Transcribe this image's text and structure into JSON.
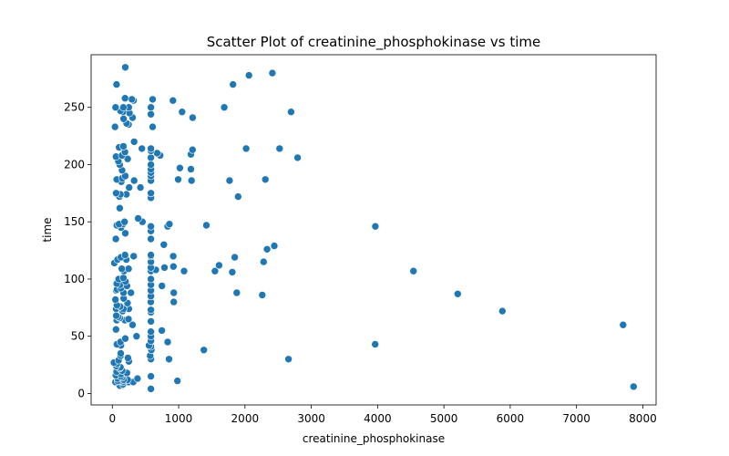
{
  "chart_data": {
    "type": "scatter",
    "title": "Scatter Plot of creatinine_phosphokinase vs time",
    "xlabel": "creatinine_phosphokinase",
    "ylabel": "time",
    "xlim": [
      -320,
      8200
    ],
    "ylim": [
      -10,
      296
    ],
    "xticks": [
      0,
      1000,
      2000,
      3000,
      4000,
      5000,
      6000,
      7000,
      8000
    ],
    "yticks": [
      0,
      50,
      100,
      150,
      200,
      250
    ],
    "grid": false,
    "legend": "none",
    "color": "#1f77b4",
    "points": [
      [
        582,
        4
      ],
      [
        7861,
        6
      ],
      [
        146,
        7
      ],
      [
        111,
        7
      ],
      [
        160,
        8
      ],
      [
        47,
        10
      ],
      [
        246,
        10
      ],
      [
        315,
        10
      ],
      [
        157,
        10
      ],
      [
        123,
        11
      ],
      [
        81,
        11
      ],
      [
        231,
        12
      ],
      [
        981,
        11
      ],
      [
        168,
        12
      ],
      [
        80,
        13
      ],
      [
        379,
        13
      ],
      [
        149,
        14
      ],
      [
        582,
        15
      ],
      [
        125,
        15
      ],
      [
        52,
        16
      ],
      [
        128,
        17
      ],
      [
        220,
        18
      ],
      [
        63,
        19
      ],
      [
        148,
        20
      ],
      [
        112,
        22
      ],
      [
        122,
        23
      ],
      [
        60,
        24
      ],
      [
        70,
        26
      ],
      [
        23,
        27
      ],
      [
        249,
        28
      ],
      [
        94,
        29
      ],
      [
        582,
        30
      ],
      [
        855,
        30
      ],
      [
        2656,
        30
      ],
      [
        235,
        31
      ],
      [
        124,
        33
      ],
      [
        571,
        33
      ],
      [
        127,
        35
      ],
      [
        588,
        38
      ],
      [
        1380,
        38
      ],
      [
        582,
        41
      ],
      [
        553,
        42
      ],
      [
        129,
        42
      ],
      [
        3964,
        43
      ],
      [
        69,
        43
      ],
      [
        122,
        45
      ],
      [
        835,
        45
      ],
      [
        582,
        46
      ],
      [
        196,
        48
      ],
      [
        582,
        50
      ],
      [
        364,
        50
      ],
      [
        582,
        54
      ],
      [
        747,
        55
      ],
      [
        55,
        56
      ],
      [
        305,
        60
      ],
      [
        7702,
        60
      ],
      [
        582,
        63
      ],
      [
        66,
        64
      ],
      [
        190,
        64
      ],
      [
        244,
        65
      ],
      [
        112,
        66
      ],
      [
        88,
        67
      ],
      [
        59,
        68
      ],
      [
        582,
        71
      ],
      [
        5882,
        72
      ],
      [
        156,
        72
      ],
      [
        582,
        73
      ],
      [
        249,
        74
      ],
      [
        166,
        74
      ],
      [
        56,
        74
      ],
      [
        118,
        76
      ],
      [
        69,
        77
      ],
      [
        228,
        79
      ],
      [
        580,
        80
      ],
      [
        926,
        80
      ],
      [
        47,
        82
      ],
      [
        171,
        83
      ],
      [
        582,
        85
      ],
      [
        2261,
        86
      ],
      [
        5209,
        87
      ],
      [
        1876,
        88
      ],
      [
        280,
        88
      ],
      [
        168,
        88
      ],
      [
        926,
        88
      ],
      [
        582,
        90
      ],
      [
        59,
        90
      ],
      [
        72,
        91
      ],
      [
        130,
        92
      ],
      [
        220,
        94
      ],
      [
        748,
        94
      ],
      [
        582,
        95
      ],
      [
        115,
        95
      ],
      [
        66,
        96
      ],
      [
        198,
        98
      ],
      [
        582,
        100
      ],
      [
        95,
        100
      ],
      [
        167,
        101
      ],
      [
        1808,
        106
      ],
      [
        4540,
        107
      ],
      [
        1548,
        107
      ],
      [
        582,
        107
      ],
      [
        176,
        107
      ],
      [
        1081,
        107
      ],
      [
        655,
        108
      ],
      [
        245,
        109
      ],
      [
        143,
        109
      ],
      [
        786,
        110
      ],
      [
        582,
        110
      ],
      [
        921,
        111
      ],
      [
        1610,
        112
      ],
      [
        30,
        114
      ],
      [
        582,
        115
      ],
      [
        2281,
        115
      ],
      [
        78,
        117
      ],
      [
        210,
        117
      ],
      [
        129,
        119
      ],
      [
        1846,
        119
      ],
      [
        582,
        120
      ],
      [
        918,
        120
      ],
      [
        322,
        120
      ],
      [
        191,
        121
      ],
      [
        582,
        121
      ],
      [
        2334,
        126
      ],
      [
        2442,
        129
      ],
      [
        776,
        130
      ],
      [
        582,
        135
      ],
      [
        52,
        135
      ],
      [
        196,
        140
      ],
      [
        582,
        142
      ],
      [
        131,
        145
      ],
      [
        3966,
        146
      ],
      [
        582,
        146
      ],
      [
        835,
        146
      ],
      [
        67,
        147
      ],
      [
        1419,
        147
      ],
      [
        160,
        148
      ],
      [
        860,
        148
      ],
      [
        101,
        148
      ],
      [
        184,
        150
      ],
      [
        454,
        150
      ],
      [
        389,
        153
      ],
      [
        112,
        162
      ],
      [
        582,
        171
      ],
      [
        1896,
        172
      ],
      [
        107,
        172
      ],
      [
        212,
        174
      ],
      [
        123,
        174
      ],
      [
        582,
        175
      ],
      [
        57,
        175
      ],
      [
        253,
        180
      ],
      [
        424,
        180
      ],
      [
        135,
        185
      ],
      [
        582,
        186
      ],
      [
        1195,
        186
      ],
      [
        1767,
        186
      ],
      [
        2307,
        187
      ],
      [
        328,
        186
      ],
      [
        993,
        187
      ],
      [
        66,
        187
      ],
      [
        148,
        188
      ],
      [
        582,
        190
      ],
      [
        196,
        190
      ],
      [
        582,
        193
      ],
      [
        147,
        195
      ],
      [
        582,
        196
      ],
      [
        1185,
        196
      ],
      [
        1018,
        197
      ],
      [
        112,
        200
      ],
      [
        582,
        200
      ],
      [
        91,
        203
      ],
      [
        231,
        205
      ],
      [
        582,
        206
      ],
      [
        2794,
        206
      ],
      [
        55,
        207
      ],
      [
        720,
        208
      ],
      [
        146,
        208
      ],
      [
        1185,
        209
      ],
      [
        675,
        210
      ],
      [
        190,
        211
      ],
      [
        582,
        212
      ],
      [
        2017,
        214
      ],
      [
        1209,
        213
      ],
      [
        2522,
        214
      ],
      [
        582,
        214
      ],
      [
        446,
        214
      ],
      [
        102,
        215
      ],
      [
        167,
        216
      ],
      [
        328,
        220
      ],
      [
        607,
        233
      ],
      [
        40,
        233
      ],
      [
        245,
        235
      ],
      [
        215,
        236
      ],
      [
        169,
        240
      ],
      [
        305,
        241
      ],
      [
        1211,
        241
      ],
      [
        582,
        244
      ],
      [
        259,
        245
      ],
      [
        160,
        246
      ],
      [
        1051,
        246
      ],
      [
        2695,
        246
      ],
      [
        122,
        247
      ],
      [
        582,
        250
      ],
      [
        1688,
        250
      ],
      [
        48,
        250
      ],
      [
        248,
        250
      ],
      [
        166,
        250
      ],
      [
        914,
        256
      ],
      [
        320,
        256
      ],
      [
        607,
        257
      ],
      [
        294,
        257
      ],
      [
        191,
        258
      ],
      [
        1820,
        270
      ],
      [
        64,
        270
      ],
      [
        2060,
        278
      ],
      [
        2413,
        280
      ],
      [
        196,
        285
      ]
    ]
  }
}
